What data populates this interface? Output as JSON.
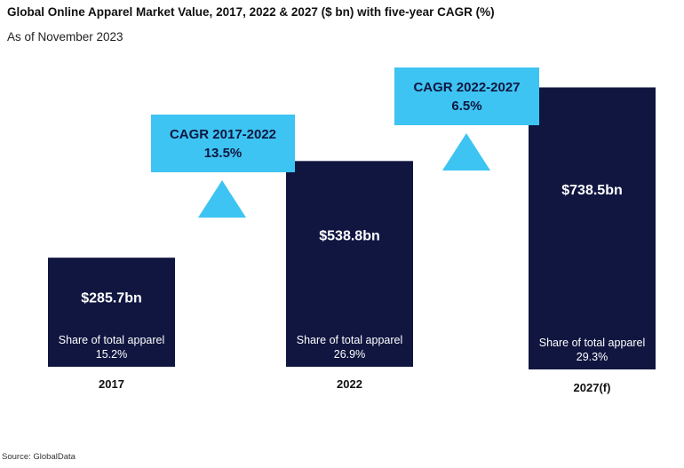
{
  "title": "Global Online Apparel Market Value, 2017, 2022 & 2027 ($ bn) with five-year CAGR (%)",
  "subtitle": "As of November 2023",
  "source": "Source: GlobalData",
  "colors": {
    "bar": "#101640",
    "callout": "#3DC4F2",
    "bar_text": "#ffffff",
    "callout_text": "#101640"
  },
  "chart_data": {
    "type": "bar",
    "unit": "$ bn",
    "categories": [
      "2017",
      "2022",
      "2027(f)"
    ],
    "values": [
      285.7,
      538.8,
      738.5
    ],
    "value_labels": [
      "$285.7bn",
      "$538.8bn",
      "$738.5bn"
    ],
    "share_label": "Share of total apparel",
    "shares": [
      "15.2%",
      "26.9%",
      "29.3%"
    ],
    "cagr": [
      {
        "label": "CAGR 2017-2022",
        "value": "13.5%"
      },
      {
        "label": "CAGR 2022-2027",
        "value": "6.5%"
      }
    ]
  }
}
